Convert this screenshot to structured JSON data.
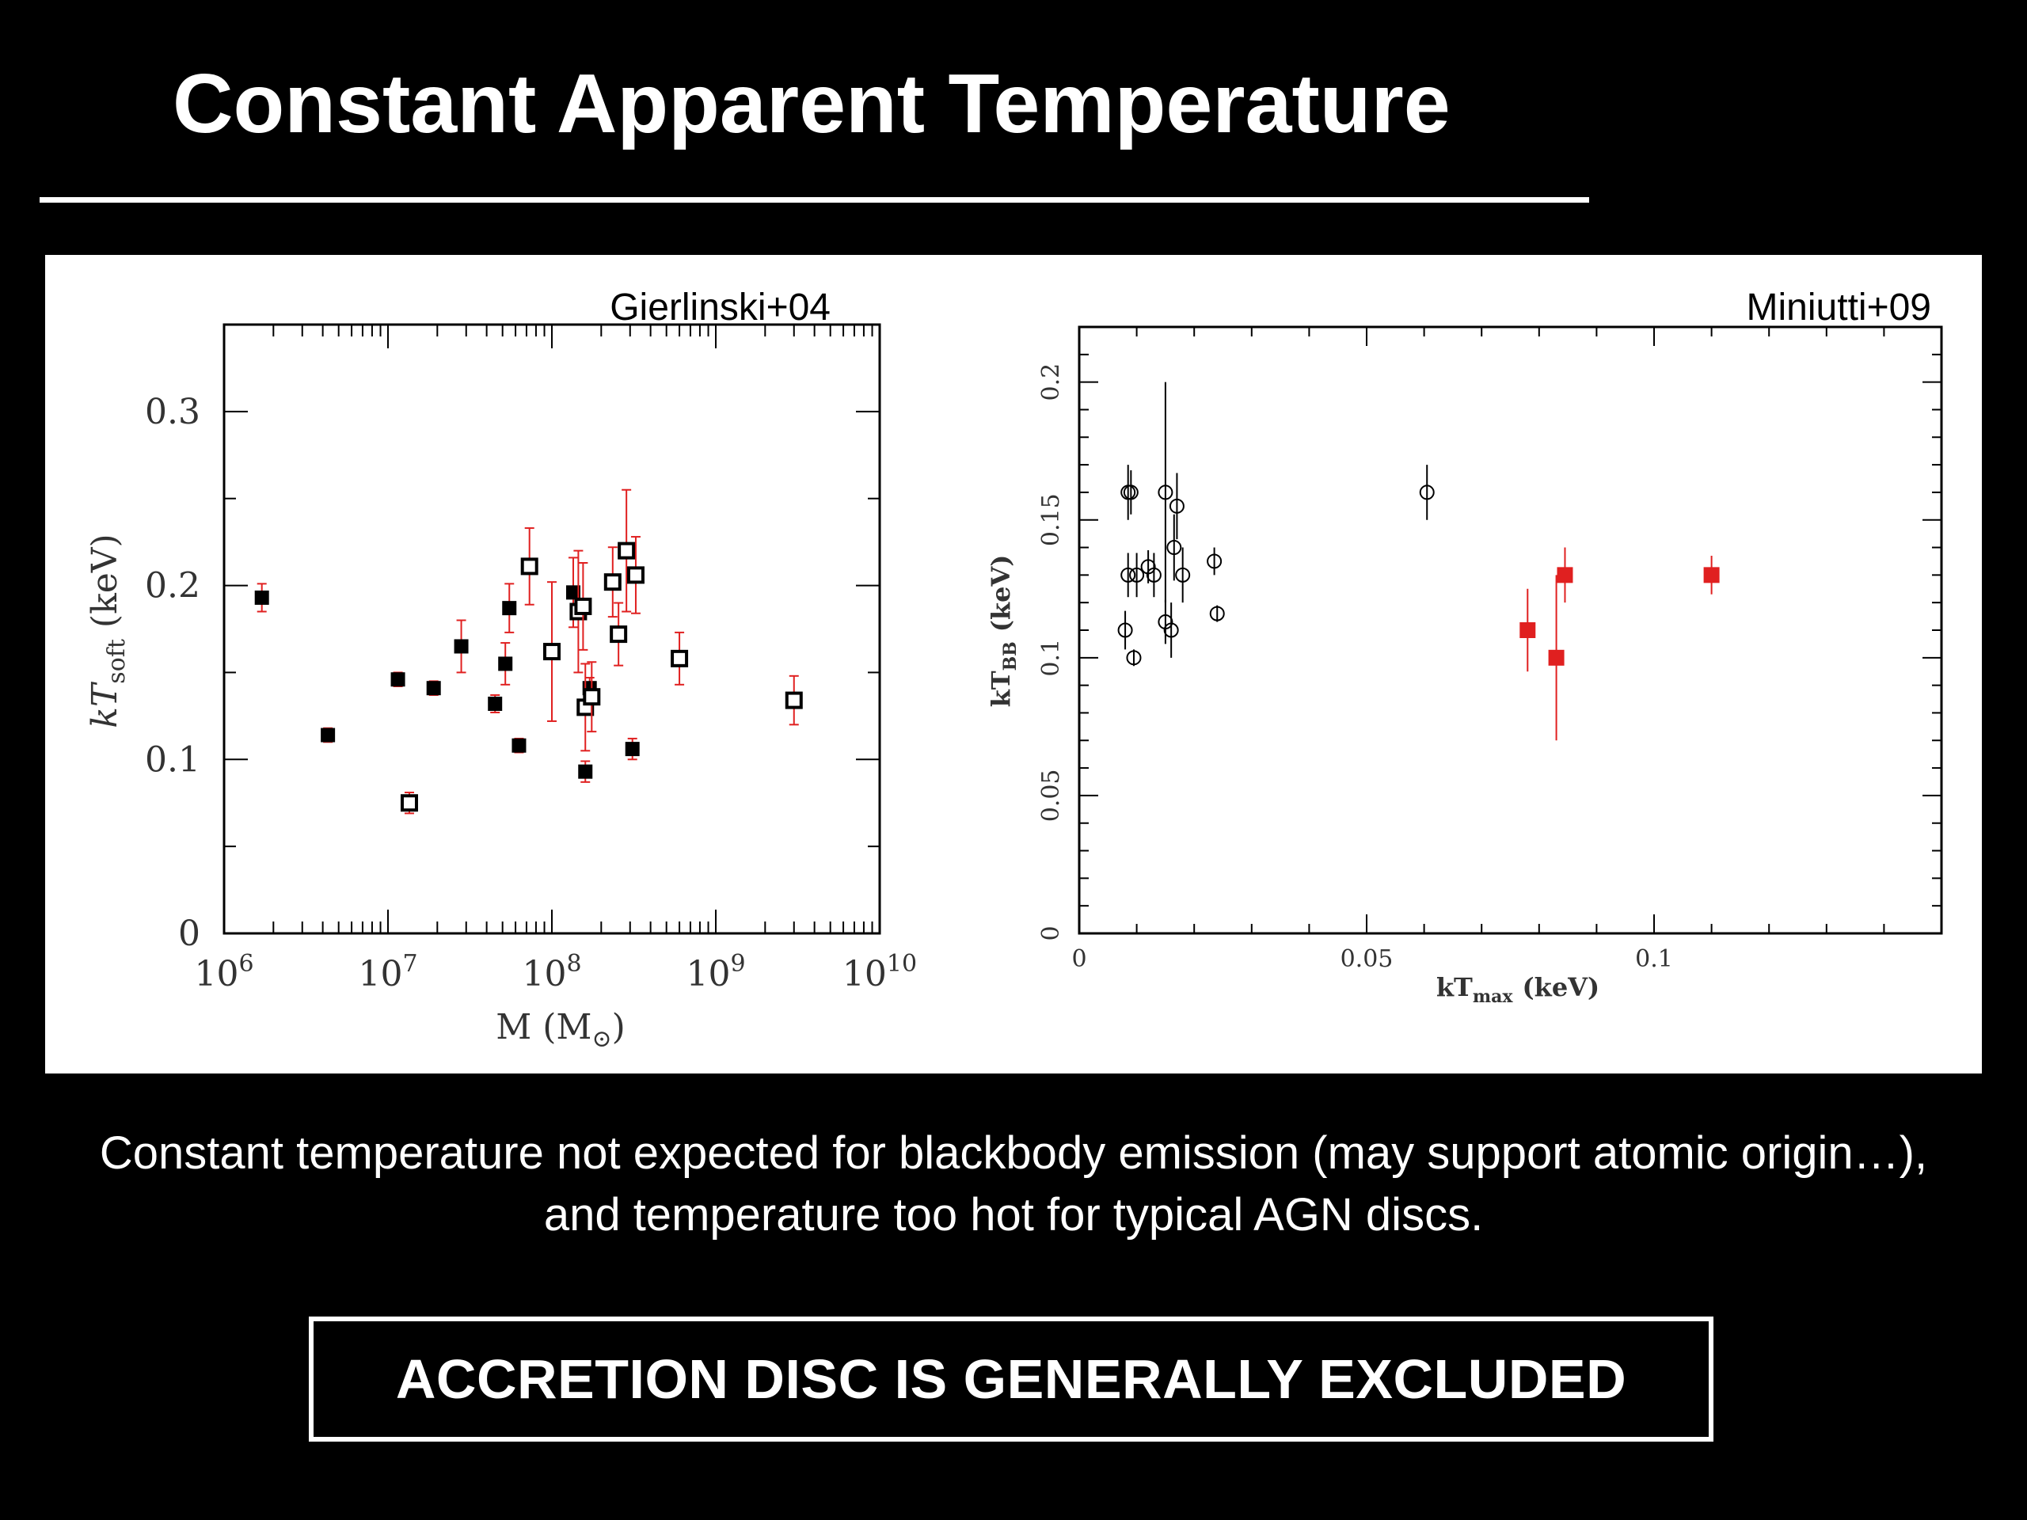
{
  "slide": {
    "title": "Constant Apparent Temperature",
    "caption": "Constant temperature not expected for blackbody emission (may support atomic origin…), and temperature too hot for typical AGN discs.",
    "conclusion": "ACCRETION DISC IS GENERALLY EXCLUDED"
  },
  "chart_data": [
    {
      "type": "scatter",
      "source_label": "Gierlinski+04",
      "xlabel": "M",
      "xlabel_sub": "⊙",
      "ylabel": "kT",
      "ylabel_sub": "soft",
      "ylabel_unit": "(keV)",
      "xscale": "log",
      "xlim": [
        1000000,
        10000000000
      ],
      "ylim": [
        0,
        0.35
      ],
      "xticks": [
        {
          "exp": 6,
          "label": "10",
          "sup": "6"
        },
        {
          "exp": 7,
          "label": "10",
          "sup": "7"
        },
        {
          "exp": 8,
          "label": "10",
          "sup": "8"
        },
        {
          "exp": 9,
          "label": "10",
          "sup": "9"
        },
        {
          "exp": 10,
          "label": "10",
          "sup": "10"
        }
      ],
      "yticks": [
        {
          "value": 0,
          "label": "0"
        },
        {
          "value": 0.1,
          "label": "0.1"
        },
        {
          "value": 0.2,
          "label": "0.2"
        },
        {
          "value": 0.3,
          "label": "0.3"
        }
      ],
      "colors": {
        "points": "#000000",
        "errorbars": "#e02020"
      },
      "series": [
        {
          "marker": "filled-square",
          "points": [
            {
              "x": 1700000,
              "y": 0.193,
              "err": 0.008
            },
            {
              "x": 4300000,
              "y": 0.114,
              "err": 0.004
            },
            {
              "x": 11500000,
              "y": 0.146,
              "err": 0.004
            },
            {
              "x": 19000000,
              "y": 0.141,
              "err": 0.004
            },
            {
              "x": 28000000,
              "y": 0.165,
              "err": 0.015
            },
            {
              "x": 45000000,
              "y": 0.132,
              "err": 0.005
            },
            {
              "x": 52000000,
              "y": 0.155,
              "err": 0.012
            },
            {
              "x": 55000000,
              "y": 0.187,
              "err": 0.014
            },
            {
              "x": 63000000,
              "y": 0.108,
              "err": 0.004
            },
            {
              "x": 135000000,
              "y": 0.196,
              "err": 0.02
            },
            {
              "x": 160000000,
              "y": 0.093,
              "err": 0.006
            },
            {
              "x": 170000000,
              "y": 0.141,
              "err": 0.006
            },
            {
              "x": 310000000,
              "y": 0.106,
              "err": 0.006
            }
          ]
        },
        {
          "marker": "open-square",
          "points": [
            {
              "x": 13500000,
              "y": 0.075,
              "err": 0.006
            },
            {
              "x": 73000000,
              "y": 0.211,
              "err": 0.022
            },
            {
              "x": 100000000,
              "y": 0.162,
              "err": 0.04
            },
            {
              "x": 145000000,
              "y": 0.185,
              "err": 0.035
            },
            {
              "x": 155000000,
              "y": 0.188,
              "err": 0.025
            },
            {
              "x": 160000000,
              "y": 0.13,
              "err": 0.025
            },
            {
              "x": 175000000,
              "y": 0.136,
              "err": 0.02
            },
            {
              "x": 235000000,
              "y": 0.202,
              "err": 0.02
            },
            {
              "x": 255000000,
              "y": 0.172,
              "err": 0.018
            },
            {
              "x": 285000000,
              "y": 0.22,
              "err": 0.035
            },
            {
              "x": 325000000,
              "y": 0.206,
              "err": 0.022
            },
            {
              "x": 600000000,
              "y": 0.158,
              "err": 0.015
            },
            {
              "x": 3000000000,
              "y": 0.134,
              "err": 0.014
            }
          ]
        }
      ]
    },
    {
      "type": "scatter",
      "source_label": "Miniutti+09",
      "xlabel": "kT",
      "xlabel_sub": "max",
      "xlabel_unit": "(keV)",
      "ylabel": "kT",
      "ylabel_sub": "BB",
      "ylabel_unit": "(keV)",
      "xlim": [
        0,
        0.15
      ],
      "ylim": [
        0,
        0.22
      ],
      "xticks": [
        {
          "value": 0,
          "label": "0"
        },
        {
          "value": 0.05,
          "label": "0.05"
        },
        {
          "value": 0.1,
          "label": "0.1"
        }
      ],
      "yticks": [
        {
          "value": 0,
          "label": "0"
        },
        {
          "value": 0.05,
          "label": "0.05"
        },
        {
          "value": 0.1,
          "label": "0.1"
        },
        {
          "value": 0.15,
          "label": "0.15"
        },
        {
          "value": 0.2,
          "label": "0.2"
        }
      ],
      "colors": {
        "open": "#000000",
        "filled": "#e02020"
      },
      "series": [
        {
          "marker": "open-circle",
          "points": [
            {
              "x": 0.0085,
              "y": 0.16,
              "err": 0.01
            },
            {
              "x": 0.009,
              "y": 0.16,
              "err": 0.008
            },
            {
              "x": 0.0085,
              "y": 0.13,
              "err": 0.008
            },
            {
              "x": 0.01,
              "y": 0.13,
              "err": 0.008
            },
            {
              "x": 0.008,
              "y": 0.11,
              "err": 0.007
            },
            {
              "x": 0.0095,
              "y": 0.1,
              "err": 0.003
            },
            {
              "x": 0.012,
              "y": 0.133,
              "err": 0.006
            },
            {
              "x": 0.013,
              "y": 0.13,
              "err": 0.008
            },
            {
              "x": 0.015,
              "y": 0.16,
              "err": 0.04
            },
            {
              "x": 0.015,
              "y": 0.113,
              "err": 0.008
            },
            {
              "x": 0.016,
              "y": 0.11,
              "err": 0.01
            },
            {
              "x": 0.0165,
              "y": 0.14,
              "err": 0.012
            },
            {
              "x": 0.017,
              "y": 0.155,
              "err": 0.012
            },
            {
              "x": 0.018,
              "y": 0.13,
              "err": 0.01
            },
            {
              "x": 0.0235,
              "y": 0.135,
              "err": 0.005
            },
            {
              "x": 0.024,
              "y": 0.116,
              "err": 0.003
            },
            {
              "x": 0.0605,
              "y": 0.16,
              "err": 0.01
            }
          ]
        },
        {
          "marker": "filled-square",
          "points": [
            {
              "x": 0.078,
              "y": 0.11,
              "err": 0.015
            },
            {
              "x": 0.083,
              "y": 0.1,
              "err": 0.03
            },
            {
              "x": 0.0845,
              "y": 0.13,
              "err": 0.01
            },
            {
              "x": 0.11,
              "y": 0.13,
              "err": 0.007
            }
          ]
        }
      ]
    }
  ]
}
